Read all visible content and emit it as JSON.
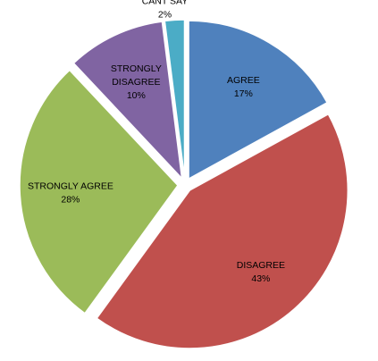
{
  "chart_data": {
    "type": "pie",
    "exploded": true,
    "slices": [
      {
        "label": "AGREE",
        "value": 17,
        "value_label": "17%",
        "color": "#4f81bd"
      },
      {
        "label": "DISAGREE",
        "value": 43,
        "value_label": "43%",
        "color": "#c0504d"
      },
      {
        "label": "STRONGLY AGREE",
        "value": 28,
        "value_label": "28%",
        "color": "#9bbb59"
      },
      {
        "label": "STRONGLY DISAGREE",
        "value": 10,
        "value_label": "10%",
        "color": "#8064a2"
      },
      {
        "label": "CANT SAY",
        "value": 2,
        "value_label": "2%",
        "color": "#4bacc6"
      }
    ]
  }
}
